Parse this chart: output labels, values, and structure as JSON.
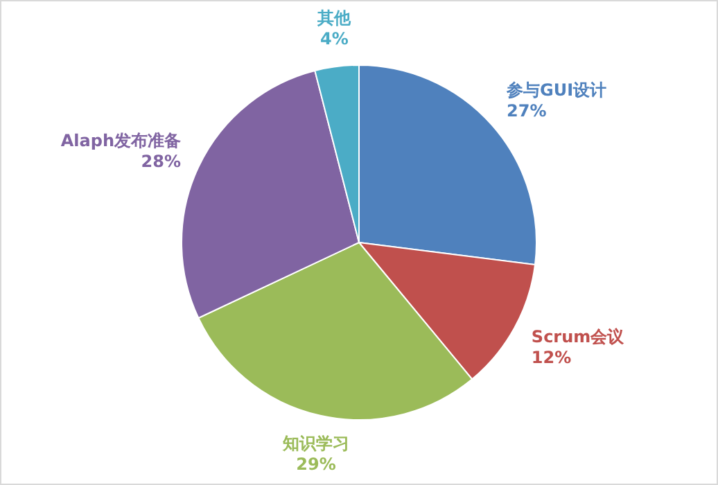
{
  "chart_data": {
    "type": "pie",
    "categories": [
      "参与GUI设计",
      "Scrum会议",
      "知识学习",
      "Alaph发布准备",
      "其他"
    ],
    "values": [
      27,
      12,
      29,
      28,
      4
    ],
    "value_labels": [
      "27%",
      "12%",
      "29%",
      "28%",
      "4%"
    ],
    "colors": [
      "#4f81bd",
      "#c0504d",
      "#9bbb59",
      "#8064a2",
      "#4bacc6"
    ]
  }
}
